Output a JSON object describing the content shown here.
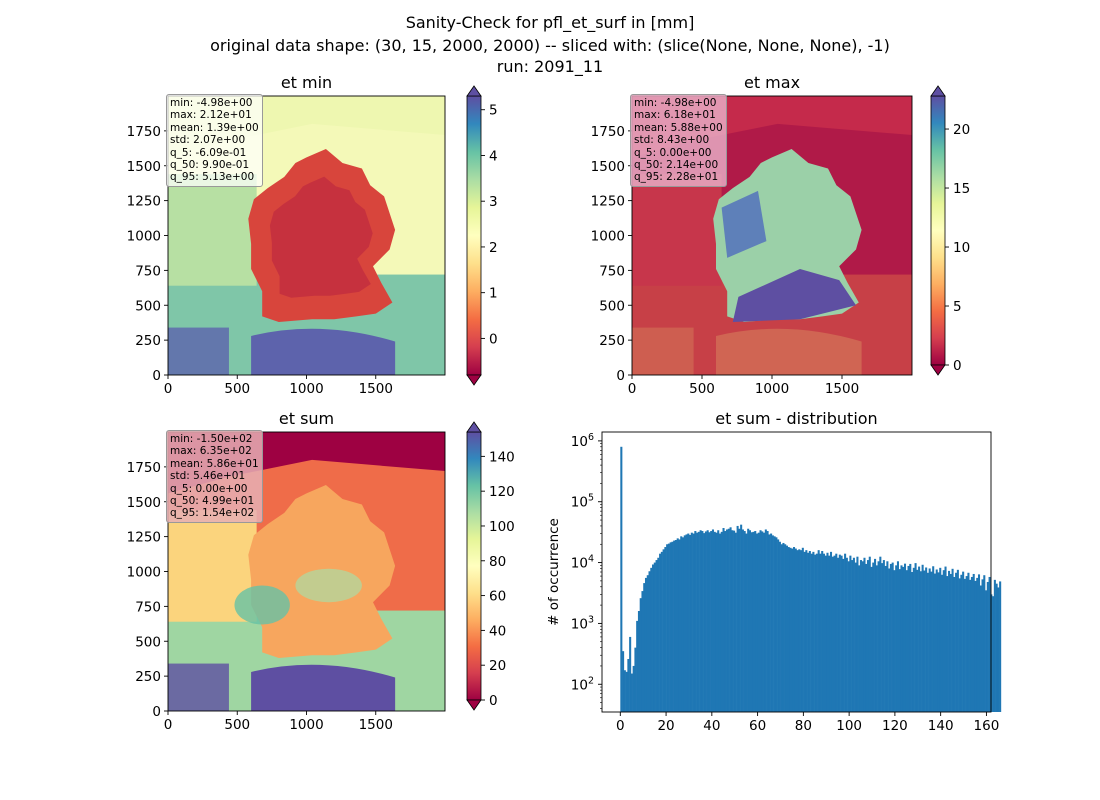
{
  "suptitle": {
    "line1": "Sanity-Check for pfl_et_surf in [mm]",
    "line2": "original data shape: (30, 15, 2000, 2000) -- sliced with: (slice(None, None, None), -1)",
    "line3": "run: 2091_11"
  },
  "colors": {
    "spectral": [
      "#9e0142",
      "#d53e4f",
      "#f46d43",
      "#fdae61",
      "#fee08b",
      "#ffffbf",
      "#e6f598",
      "#abdda4",
      "#66c2a5",
      "#3288bd",
      "#5e4fa2"
    ],
    "hist_bar": "#1f77b4"
  },
  "chart_data": [
    {
      "type": "heatmap",
      "title": "et min",
      "xlim": [
        0,
        2000
      ],
      "ylim": [
        0,
        2000
      ],
      "xticks": [
        0,
        500,
        1000,
        1500
      ],
      "yticks": [
        0,
        250,
        500,
        750,
        1000,
        1250,
        1500,
        1750
      ],
      "colorbar": {
        "vmin": -0.8,
        "vmax": 5.3,
        "ticks": [
          0,
          1,
          2,
          3,
          4,
          5
        ],
        "extend": "both",
        "colormap": "Spectral"
      },
      "stats": [
        "min: -4.98e+00",
        "max: 2.12e+01",
        "mean: 1.39e+00",
        "std: 2.07e+00",
        "q_5: -6.09e-01",
        "q_50: 9.90e-01",
        "q_95: 5.13e+00"
      ]
    },
    {
      "type": "heatmap",
      "title": "et max",
      "xlim": [
        0,
        2000
      ],
      "ylim": [
        0,
        2000
      ],
      "xticks": [
        0,
        500,
        1000,
        1500
      ],
      "yticks": [
        0,
        250,
        500,
        750,
        1000,
        1250,
        1500,
        1750
      ],
      "colorbar": {
        "vmin": 0,
        "vmax": 22.8,
        "ticks": [
          0,
          5,
          10,
          15,
          20
        ],
        "extend": "both",
        "colormap": "Spectral"
      },
      "stats": [
        "min: -4.98e+00",
        "max: 6.18e+01",
        "mean: 5.88e+00",
        "std: 8.43e+00",
        "q_5: 0.00e+00",
        "q_50: 2.14e+00",
        "q_95: 2.28e+01"
      ]
    },
    {
      "type": "heatmap",
      "title": "et sum",
      "xlim": [
        0,
        2000
      ],
      "ylim": [
        0,
        2000
      ],
      "xticks": [
        0,
        500,
        1000,
        1500
      ],
      "yticks": [
        0,
        250,
        500,
        750,
        1000,
        1250,
        1500,
        1750
      ],
      "colorbar": {
        "vmin": 0,
        "vmax": 154,
        "ticks": [
          0,
          20,
          40,
          60,
          80,
          100,
          120,
          140
        ],
        "extend": "both",
        "colormap": "Spectral"
      },
      "stats": [
        "min: -1.50e+02",
        "max: 6.35e+02",
        "mean: 5.86e+01",
        "std: 5.46e+01",
        "q_5: 0.00e+00",
        "q_50: 4.99e+01",
        "q_95: 1.54e+02"
      ]
    },
    {
      "type": "bar",
      "title": "et sum - distribution",
      "ylabel": "# of occurrence",
      "yscale": "log",
      "xlim": [
        -8,
        162
      ],
      "ylim": [
        35,
        1400000
      ],
      "xticks": [
        0,
        20,
        40,
        60,
        80,
        100,
        120,
        140,
        160
      ],
      "yticks": [
        {
          "value": 100,
          "label": "10",
          "exp": "2"
        },
        {
          "value": 1000,
          "label": "10",
          "exp": "3"
        },
        {
          "value": 10000,
          "label": "10",
          "exp": "4"
        },
        {
          "value": 100000,
          "label": "10",
          "exp": "5"
        },
        {
          "value": 1000000,
          "label": "10",
          "exp": "6"
        }
      ],
      "bin_start": 0,
      "bin_width": 0.77,
      "counts": [
        800000,
        350,
        170,
        160,
        260,
        600,
        150,
        200,
        400,
        1100,
        1600,
        2600,
        3400,
        4600,
        5600,
        6200,
        7200,
        8200,
        9300,
        10000,
        11000,
        12000,
        14000,
        15000,
        16500,
        18000,
        20000,
        20500,
        21500,
        22000,
        23000,
        23500,
        25000,
        24000,
        27000,
        26000,
        28000,
        29000,
        30000,
        28500,
        31000,
        30000,
        33000,
        31000,
        32000,
        34000,
        33000,
        30500,
        32500,
        34000,
        31500,
        33000,
        35000,
        32000,
        31000,
        34000,
        30000,
        32000,
        37000,
        33000,
        35000,
        36000,
        38000,
        34000,
        33500,
        31000,
        40000,
        36000,
        42000,
        35000,
        33000,
        30000,
        36000,
        34000,
        31500,
        32000,
        33000,
        30000,
        31000,
        34000,
        32500,
        31000,
        35000,
        33000,
        29000,
        30000,
        28000,
        27000,
        26000,
        24000,
        22000,
        20000,
        21000,
        20000,
        19000,
        18000,
        17500,
        17000,
        18000,
        17000,
        16000,
        16500,
        16000,
        17500,
        15000,
        16000,
        14500,
        15500,
        14000,
        15000,
        13500,
        14000,
        16000,
        14000,
        15500,
        14000,
        13000,
        14500,
        13000,
        15000,
        12500,
        13000,
        14000,
        12000,
        13500,
        13000,
        11500,
        14000,
        12000,
        10500,
        13000,
        11000,
        12000,
        10000,
        12500,
        9000,
        11000,
        10500,
        12000,
        9500,
        11000,
        12500,
        8500,
        10000,
        11500,
        9000,
        10500,
        12500,
        9800,
        11000,
        8800,
        10500,
        8000,
        9500,
        10000,
        7500,
        9000,
        10500,
        7800,
        9000,
        8500,
        9600,
        7500,
        8800,
        9500,
        7000,
        8200,
        9800,
        7600,
        8600,
        7200,
        9200,
        7400,
        8300,
        6800,
        8000,
        7100,
        8700,
        6600,
        7700,
        6900,
        8200,
        6300,
        7500,
        8600,
        6000,
        7300,
        6500,
        7900,
        5800,
        6800,
        7600,
        5500,
        6300,
        7100,
        5400,
        6000,
        6800,
        5200,
        5800,
        6500,
        5000,
        5600,
        6400,
        4200,
        5300,
        6200,
        3500,
        4800,
        5800,
        3000,
        2800,
        5200,
        4500,
        3900,
        4900
      ]
    }
  ]
}
